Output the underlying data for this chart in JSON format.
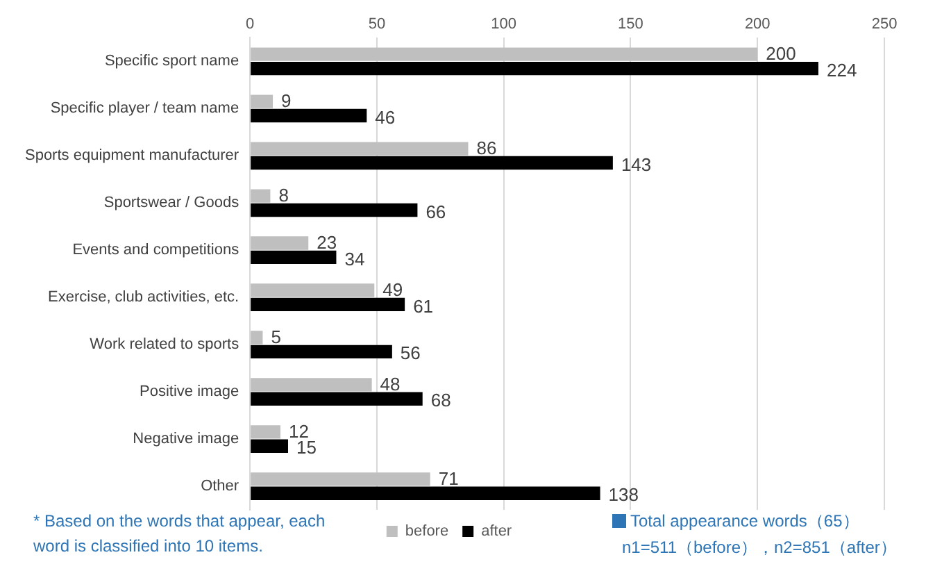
{
  "chart_data": {
    "type": "bar",
    "orientation": "horizontal",
    "categories": [
      "Specific sport name",
      "Specific player / team name",
      "Sports equipment manufacturer",
      "Sportswear / Goods",
      "Events and competitions",
      "Exercise, club activities, etc.",
      "Work related to sports",
      "Positive image",
      "Negative image",
      "Other"
    ],
    "series": [
      {
        "name": "before",
        "color": "#bfbfbf",
        "values": [
          200,
          9,
          86,
          8,
          23,
          49,
          5,
          48,
          12,
          71
        ]
      },
      {
        "name": "after",
        "color": "#000000",
        "values": [
          224,
          46,
          143,
          66,
          34,
          61,
          56,
          68,
          15,
          138
        ]
      }
    ],
    "xlim": [
      0,
      250
    ],
    "xticks": [
      0,
      50,
      100,
      150,
      200,
      250
    ],
    "grid": "x",
    "legend": "bottom",
    "data_labels": true,
    "annotations": [
      "* Based on the words that appear, each word is classified into 10 items.",
      "Total appearance words（65）",
      "n1=511（before），n2=851（after）"
    ]
  }
}
